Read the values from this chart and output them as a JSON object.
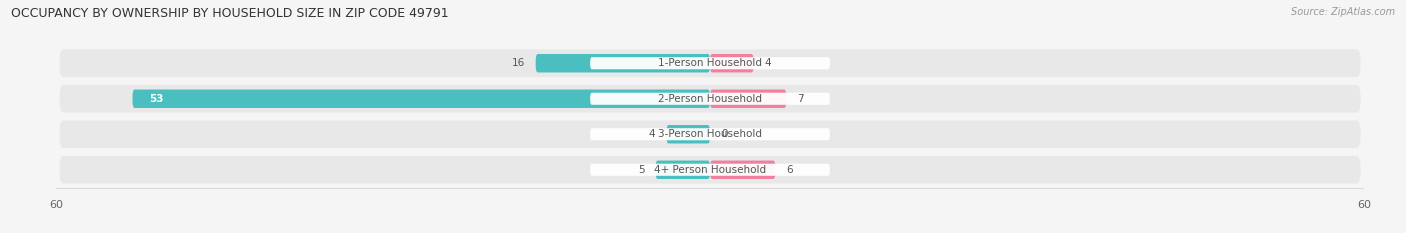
{
  "title": "OCCUPANCY BY OWNERSHIP BY HOUSEHOLD SIZE IN ZIP CODE 49791",
  "source": "Source: ZipAtlas.com",
  "categories": [
    "1-Person Household",
    "2-Person Household",
    "3-Person Household",
    "4+ Person Household"
  ],
  "owner_values": [
    16,
    53,
    4,
    5
  ],
  "renter_values": [
    4,
    7,
    0,
    6
  ],
  "owner_color": "#4BBFBF",
  "renter_color": "#F080A0",
  "axis_max": 60,
  "background_color": "#f5f5f5",
  "row_bg_color": "#e8e8e8",
  "title_fontsize": 9,
  "source_fontsize": 7,
  "label_fontsize": 7.5,
  "value_fontsize": 7.5,
  "axis_label_fontsize": 8
}
